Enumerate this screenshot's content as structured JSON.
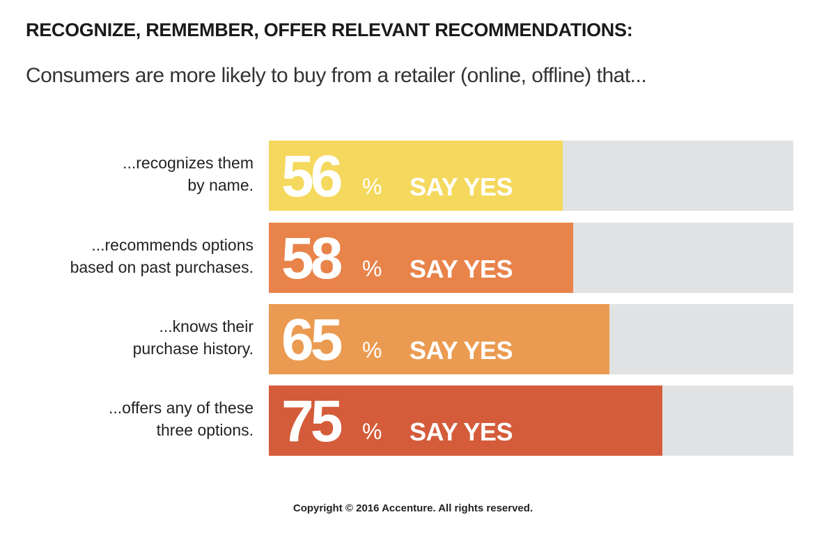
{
  "chart_data": {
    "type": "bar",
    "orientation": "horizontal",
    "title": "RECOGNIZE, REMEMBER, OFFER RELEVANT RECOMMENDATIONS:",
    "subtitle": "Consumers are more likely to buy from a retailer (online, offline) that...",
    "xlim": [
      0,
      100
    ],
    "unit": "%",
    "value_suffix": "SAY YES",
    "categories": [
      [
        "...recognizes them",
        "by name."
      ],
      [
        "...recommends options",
        "based on past purchases."
      ],
      [
        "...knows their",
        "purchase history."
      ],
      [
        "...offers any of these",
        "three options."
      ]
    ],
    "values": [
      56,
      58,
      65,
      75
    ],
    "colors": [
      "#f5d95e",
      "#e8834a",
      "#eb9b51",
      "#d45c3b"
    ],
    "track_color": "#e1e2e3"
  },
  "footer": {
    "copyright": "Copyright © 2016 Accenture. All rights reserved."
  }
}
